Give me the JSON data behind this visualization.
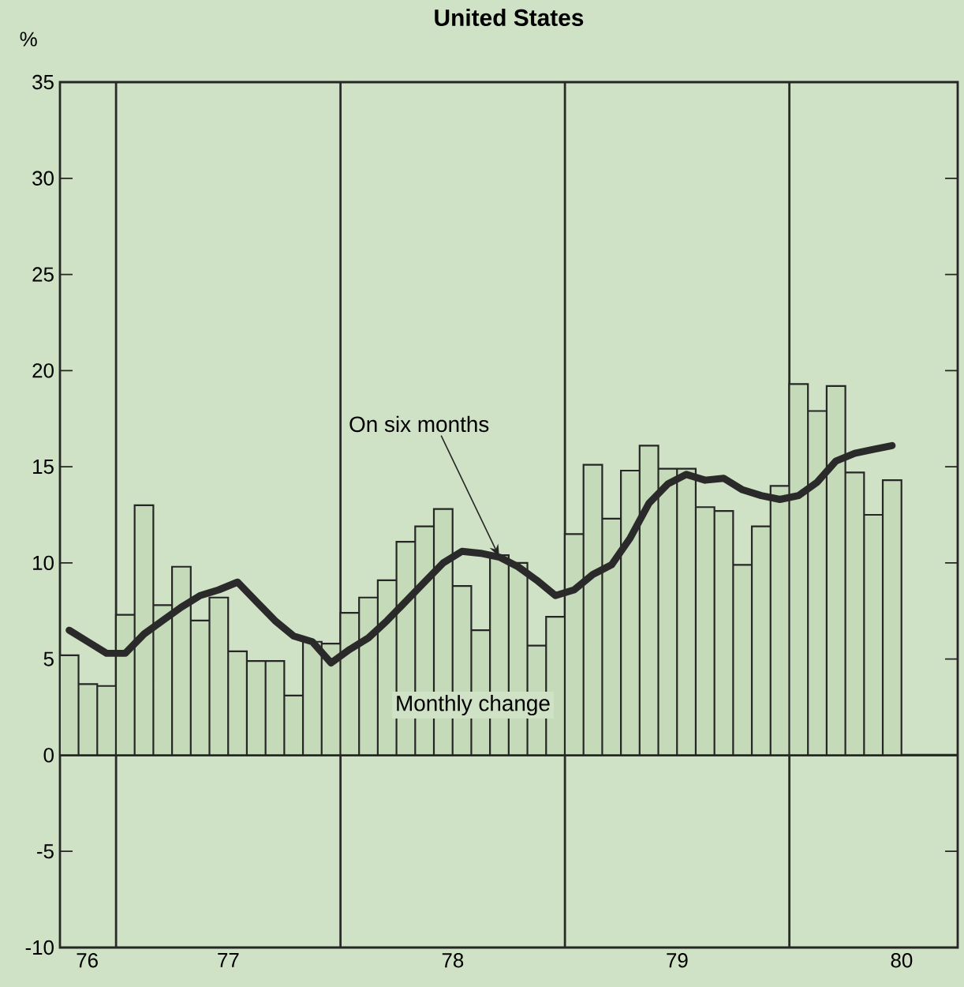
{
  "chart_data": {
    "type": "bar",
    "title": "United States",
    "ylabel": "%",
    "x": [
      "1976-10-16",
      "1976-11-16",
      "1976-12-16",
      "1977-01-16",
      "1977-02-16",
      "1977-03-16",
      "1977-04-16",
      "1977-05-16",
      "1977-06-16",
      "1977-07-16",
      "1977-08-16",
      "1977-09-16",
      "1977-10-16",
      "1977-11-16",
      "1977-12-16",
      "1978-01-16",
      "1978-02-16",
      "1978-03-16",
      "1978-04-16",
      "1978-05-16",
      "1978-06-16",
      "1978-07-16",
      "1978-08-16",
      "1978-09-16",
      "1978-10-16",
      "1978-11-16",
      "1978-12-16",
      "1979-01-16",
      "1979-02-16",
      "1979-03-16",
      "1979-04-16",
      "1979-05-16",
      "1979-06-16",
      "1979-07-16",
      "1979-08-16",
      "1979-09-16",
      "1979-10-16",
      "1979-11-16",
      "1979-12-16",
      "1980-01-16",
      "1980-02-16",
      "1980-03-16",
      "1980-04-16",
      "1980-05-16",
      "1980-06-16"
    ],
    "series": [
      {
        "name": "Monthly change",
        "color": "#c4dab8",
        "values": [
          5.2,
          3.7,
          3.6,
          7.3,
          13.0,
          7.8,
          9.8,
          7.0,
          8.2,
          5.4,
          4.9,
          4.9,
          3.1,
          5.9,
          5.8,
          7.4,
          8.2,
          9.1,
          11.1,
          11.9,
          12.8,
          8.8,
          6.5,
          10.4,
          10.0,
          5.7,
          7.2,
          11.5,
          15.1,
          12.3,
          14.8,
          16.1,
          14.9,
          14.9,
          12.9,
          12.7,
          9.9,
          11.9,
          14.0,
          19.3,
          17.9,
          19.2,
          14.7,
          12.5,
          14.3
        ]
      },
      {
        "name": "On six months",
        "type": "line",
        "color": "#2a2a2a",
        "values": [
          6.5,
          5.9,
          5.3,
          5.3,
          6.3,
          7.0,
          7.7,
          8.3,
          8.6,
          9.0,
          8.0,
          7.0,
          6.2,
          5.9,
          4.8,
          5.5,
          6.1,
          7.0,
          8.0,
          9.0,
          10.0,
          10.6,
          10.5,
          10.3,
          9.8,
          9.1,
          8.3,
          8.6,
          9.4,
          9.9,
          11.3,
          13.1,
          14.1,
          14.6,
          14.3,
          14.4,
          13.8,
          13.5,
          13.3,
          13.5,
          14.2,
          15.3,
          15.7,
          15.9,
          16.1
        ]
      }
    ],
    "xlim": [
      "1976-10-01",
      "1980-10-01"
    ],
    "xticks": [
      {
        "value": "1976-11-15",
        "label": "76"
      },
      {
        "value": "1977-07-01",
        "label": "77"
      },
      {
        "value": "1978-07-01",
        "label": "78"
      },
      {
        "value": "1979-07-01",
        "label": "79"
      },
      {
        "value": "1980-07-01",
        "label": "80"
      }
    ],
    "ylim": [
      -10,
      35
    ],
    "yticks": [
      -10,
      -5,
      0,
      5,
      10,
      15,
      20,
      25,
      30,
      35
    ],
    "ref_lines": [
      {
        "axis": "x",
        "value": "1977-01-01",
        "color": "#2a2a2a"
      },
      {
        "axis": "x",
        "value": "1978-01-01",
        "color": "#2a2a2a"
      },
      {
        "axis": "x",
        "value": "1979-01-01",
        "color": "#2a2a2a"
      },
      {
        "axis": "x",
        "value": "1980-01-01",
        "color": "#2a2a2a"
      },
      {
        "axis": "y",
        "value": 0,
        "color": "#2a2a2a"
      }
    ]
  }
}
